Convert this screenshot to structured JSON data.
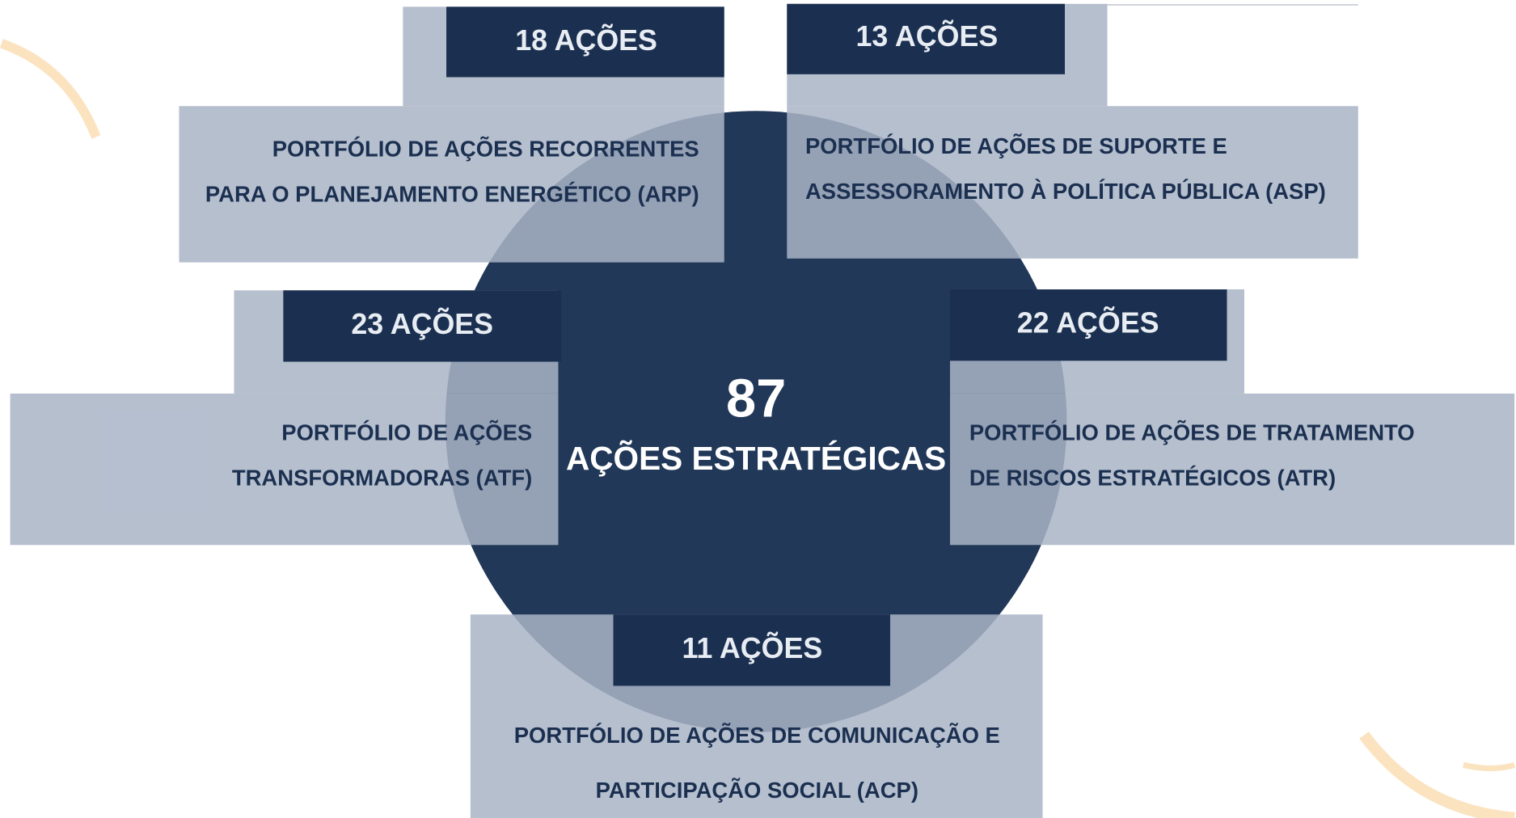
{
  "center": {
    "number": "87",
    "label": "AÇÕES ESTRATÉGICAS"
  },
  "portfolios": [
    {
      "count": "18 AÇÕES",
      "lines": [
        "PORTFÓLIO DE AÇÕES RECORRENTES",
        "PARA O PLANEJAMENTO ENERGÉTICO (ARP)"
      ]
    },
    {
      "count": "13 AÇÕES",
      "lines": [
        "PORTFÓLIO DE AÇÕES DE SUPORTE E",
        "ASSESSORAMENTO À POLÍTICA PÚBLICA (ASP)"
      ]
    },
    {
      "count": "23 AÇÕES",
      "lines": [
        "PORTFÓLIO DE AÇÕES",
        "TRANSFORMADORAS (ATF)"
      ]
    },
    {
      "count": "22 AÇÕES",
      "lines": [
        "PORTFÓLIO DE AÇÕES DE TRATAMENTO",
        "DE RISCOS ESTRATÉGICOS (ATR)"
      ]
    },
    {
      "count": "11 AÇÕES",
      "lines": [
        "PORTFÓLIO DE  AÇÕES DE COMUNICAÇÃO E",
        "PARTICIPAÇÃO  SOCIAL (ACP)"
      ]
    }
  ]
}
